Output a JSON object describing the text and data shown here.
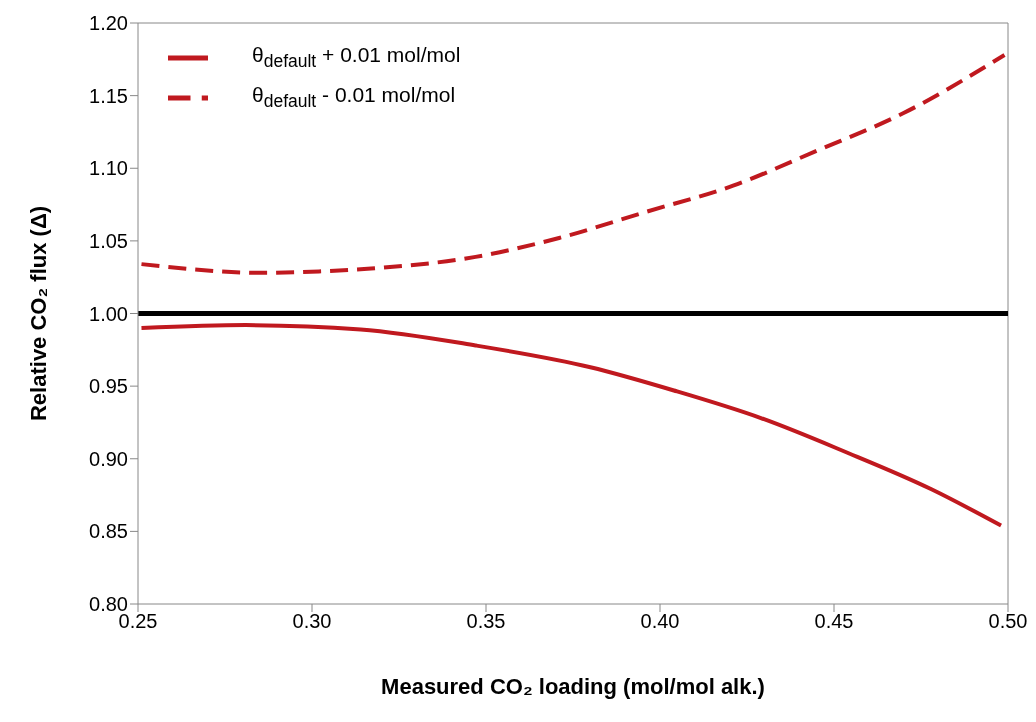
{
  "chart_data": {
    "type": "line",
    "xlabel": "Measured CO₂ loading (mol/mol alk.)",
    "ylabel": "Relative CO₂ flux (Δ)",
    "xlim": [
      0.25,
      0.5
    ],
    "xticks": [
      {
        "value": 0.25,
        "label": "0.25"
      },
      {
        "value": 0.3,
        "label": "0.30"
      },
      {
        "value": 0.35,
        "label": "0.35"
      },
      {
        "value": 0.4,
        "label": "0.40"
      },
      {
        "value": 0.45,
        "label": "0.45"
      },
      {
        "value": 0.5,
        "label": "0.50"
      }
    ],
    "ylim": [
      0.8,
      1.2
    ],
    "yticks": [
      {
        "value": 0.8,
        "label": "0.80"
      },
      {
        "value": 0.85,
        "label": "0.85"
      },
      {
        "value": 0.9,
        "label": "0.90"
      },
      {
        "value": 0.95,
        "label": "0.95"
      },
      {
        "value": 1.0,
        "label": "1.00"
      },
      {
        "value": 1.05,
        "label": "1.05"
      },
      {
        "value": 1.1,
        "label": "1.10"
      },
      {
        "value": 1.15,
        "label": "1.15"
      },
      {
        "value": 1.2,
        "label": "1.20"
      }
    ],
    "grid": false,
    "legend": "top left",
    "marker": "none",
    "ref_lines": [
      {
        "axis": "y",
        "value": 1.0,
        "color": "#000000"
      }
    ],
    "series": [
      {
        "name": "θ$_{default}$ + 0.01 mol/mol",
        "color": "#c0191f",
        "line_style": "solid",
        "x": [
          0.251,
          0.281,
          0.314,
          0.347,
          0.38,
          0.404,
          0.429,
          0.453,
          0.478,
          0.498
        ],
        "values": [
          0.99,
          0.992,
          0.989,
          0.978,
          0.963,
          0.947,
          0.928,
          0.905,
          0.879,
          0.854
        ]
      },
      {
        "name": "θ$_{default}$ - 0.01 mol/mol",
        "color": "#c0191f",
        "line_style": "dashed",
        "x": [
          0.251,
          0.286,
          0.302,
          0.317,
          0.347,
          0.371,
          0.396,
          0.421,
          0.445,
          0.47,
          0.499
        ],
        "values": [
          1.034,
          1.028,
          1.029,
          1.031,
          1.039,
          1.052,
          1.07,
          1.088,
          1.112,
          1.138,
          1.178
        ]
      }
    ]
  }
}
